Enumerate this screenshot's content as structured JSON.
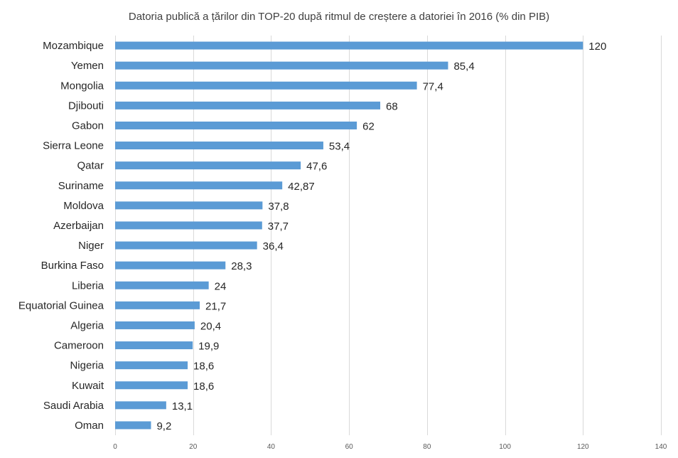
{
  "chart_data": {
    "type": "bar",
    "orientation": "horizontal",
    "title": "Datoria publică a țărilor din TOP-20 după ritmul de creștere a datoriei în 2016 (% din PIB)",
    "categories": [
      "Mozambique",
      "Yemen",
      "Mongolia",
      "Djibouti",
      "Gabon",
      "Sierra Leone",
      "Qatar",
      "Suriname",
      "Moldova",
      "Azerbaijan",
      "Niger",
      "Burkina Faso",
      "Liberia",
      "Equatorial Guinea",
      "Algeria",
      "Cameroon",
      "Nigeria",
      "Kuwait",
      "Saudi Arabia",
      "Oman"
    ],
    "values": [
      120,
      85.4,
      77.4,
      68,
      62,
      53.4,
      47.6,
      42.87,
      37.8,
      37.7,
      36.4,
      28.3,
      24,
      21.7,
      20.4,
      19.9,
      18.6,
      18.6,
      13.1,
      9.2
    ],
    "value_labels": [
      "120",
      "85,4",
      "77,4",
      "68",
      "62",
      "53,4",
      "47,6",
      "42,87",
      "37,8",
      "37,7",
      "36,4",
      "28,3",
      "24",
      "21,7",
      "20,4",
      "19,9",
      "18,6",
      "18,6",
      "13,1",
      "9,2"
    ],
    "xlim": [
      0,
      140
    ],
    "x_ticks": [
      0,
      20,
      40,
      60,
      80,
      100,
      120,
      140
    ],
    "grid": "vertical",
    "legend": "none",
    "bar_color": "#5b9bd5"
  }
}
